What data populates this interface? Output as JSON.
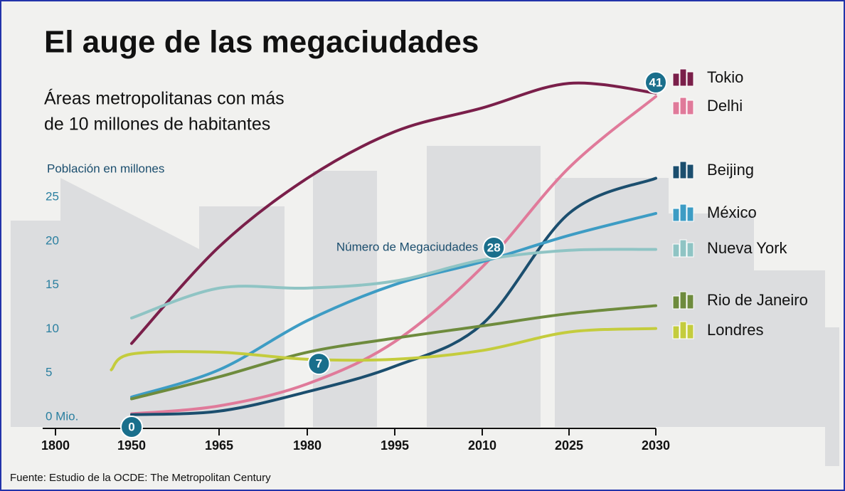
{
  "chart_data": {
    "type": "line",
    "title": "El auge de las megaciudades",
    "subtitle": [
      "Áreas metropolitanas con más",
      "de 10 millones de habitantes"
    ],
    "y_label": "Población en millones",
    "source": "Fuente: Estudio de la OCDE: The Metropolitan Century",
    "x": [
      1910,
      1950,
      1965,
      1980,
      1995,
      2010,
      2025,
      2030
    ],
    "xticks": [
      1800,
      1950,
      1965,
      1980,
      1995,
      2010,
      2025,
      2030
    ],
    "ylim": [
      0,
      40
    ],
    "yticks": [
      {
        "value": 0,
        "label": "0 Mio."
      },
      5,
      10,
      15,
      20,
      25
    ],
    "series": [
      {
        "name": "Tokio",
        "color": "#7a1f4a",
        "values": [
          null,
          9.5,
          20.5,
          28.3,
          33.6,
          36.3,
          39.1,
          38.0
        ]
      },
      {
        "name": "Delhi",
        "color": "#e07a9a",
        "values": [
          null,
          1.5,
          2.4,
          4.9,
          9.7,
          18.2,
          29.5,
          37.6
        ]
      },
      {
        "name": "Beijing",
        "color": "#1b4e6e",
        "values": [
          null,
          1.4,
          1.8,
          4.0,
          6.9,
          11.7,
          24.3,
          28.3
        ]
      },
      {
        "name": "México",
        "color": "#3d9cc4",
        "values": [
          null,
          3.4,
          6.5,
          12.1,
          16.2,
          18.8,
          21.8,
          24.3
        ]
      },
      {
        "name": "Nueva York",
        "color": "#8fc4c4",
        "values": [
          null,
          12.4,
          15.8,
          15.8,
          16.6,
          19.0,
          20.1,
          20.2
        ]
      },
      {
        "name": "Rio de Janeiro",
        "color": "#6e8b3d",
        "values": [
          null,
          3.2,
          5.7,
          8.5,
          10.1,
          11.5,
          12.9,
          13.8
        ]
      },
      {
        "name": "Londres",
        "color": "#c4cc3d",
        "values": [
          6.5,
          8.3,
          8.5,
          7.7,
          7.7,
          8.7,
          10.8,
          11.2
        ]
      }
    ],
    "megacities": {
      "label": "Número de Megaciudades",
      "x": [
        1950,
        1982,
        2012,
        2030
      ],
      "y": [
        0,
        7.2,
        20.4,
        39.2
      ],
      "values": [
        0,
        7,
        28,
        41
      ]
    }
  }
}
